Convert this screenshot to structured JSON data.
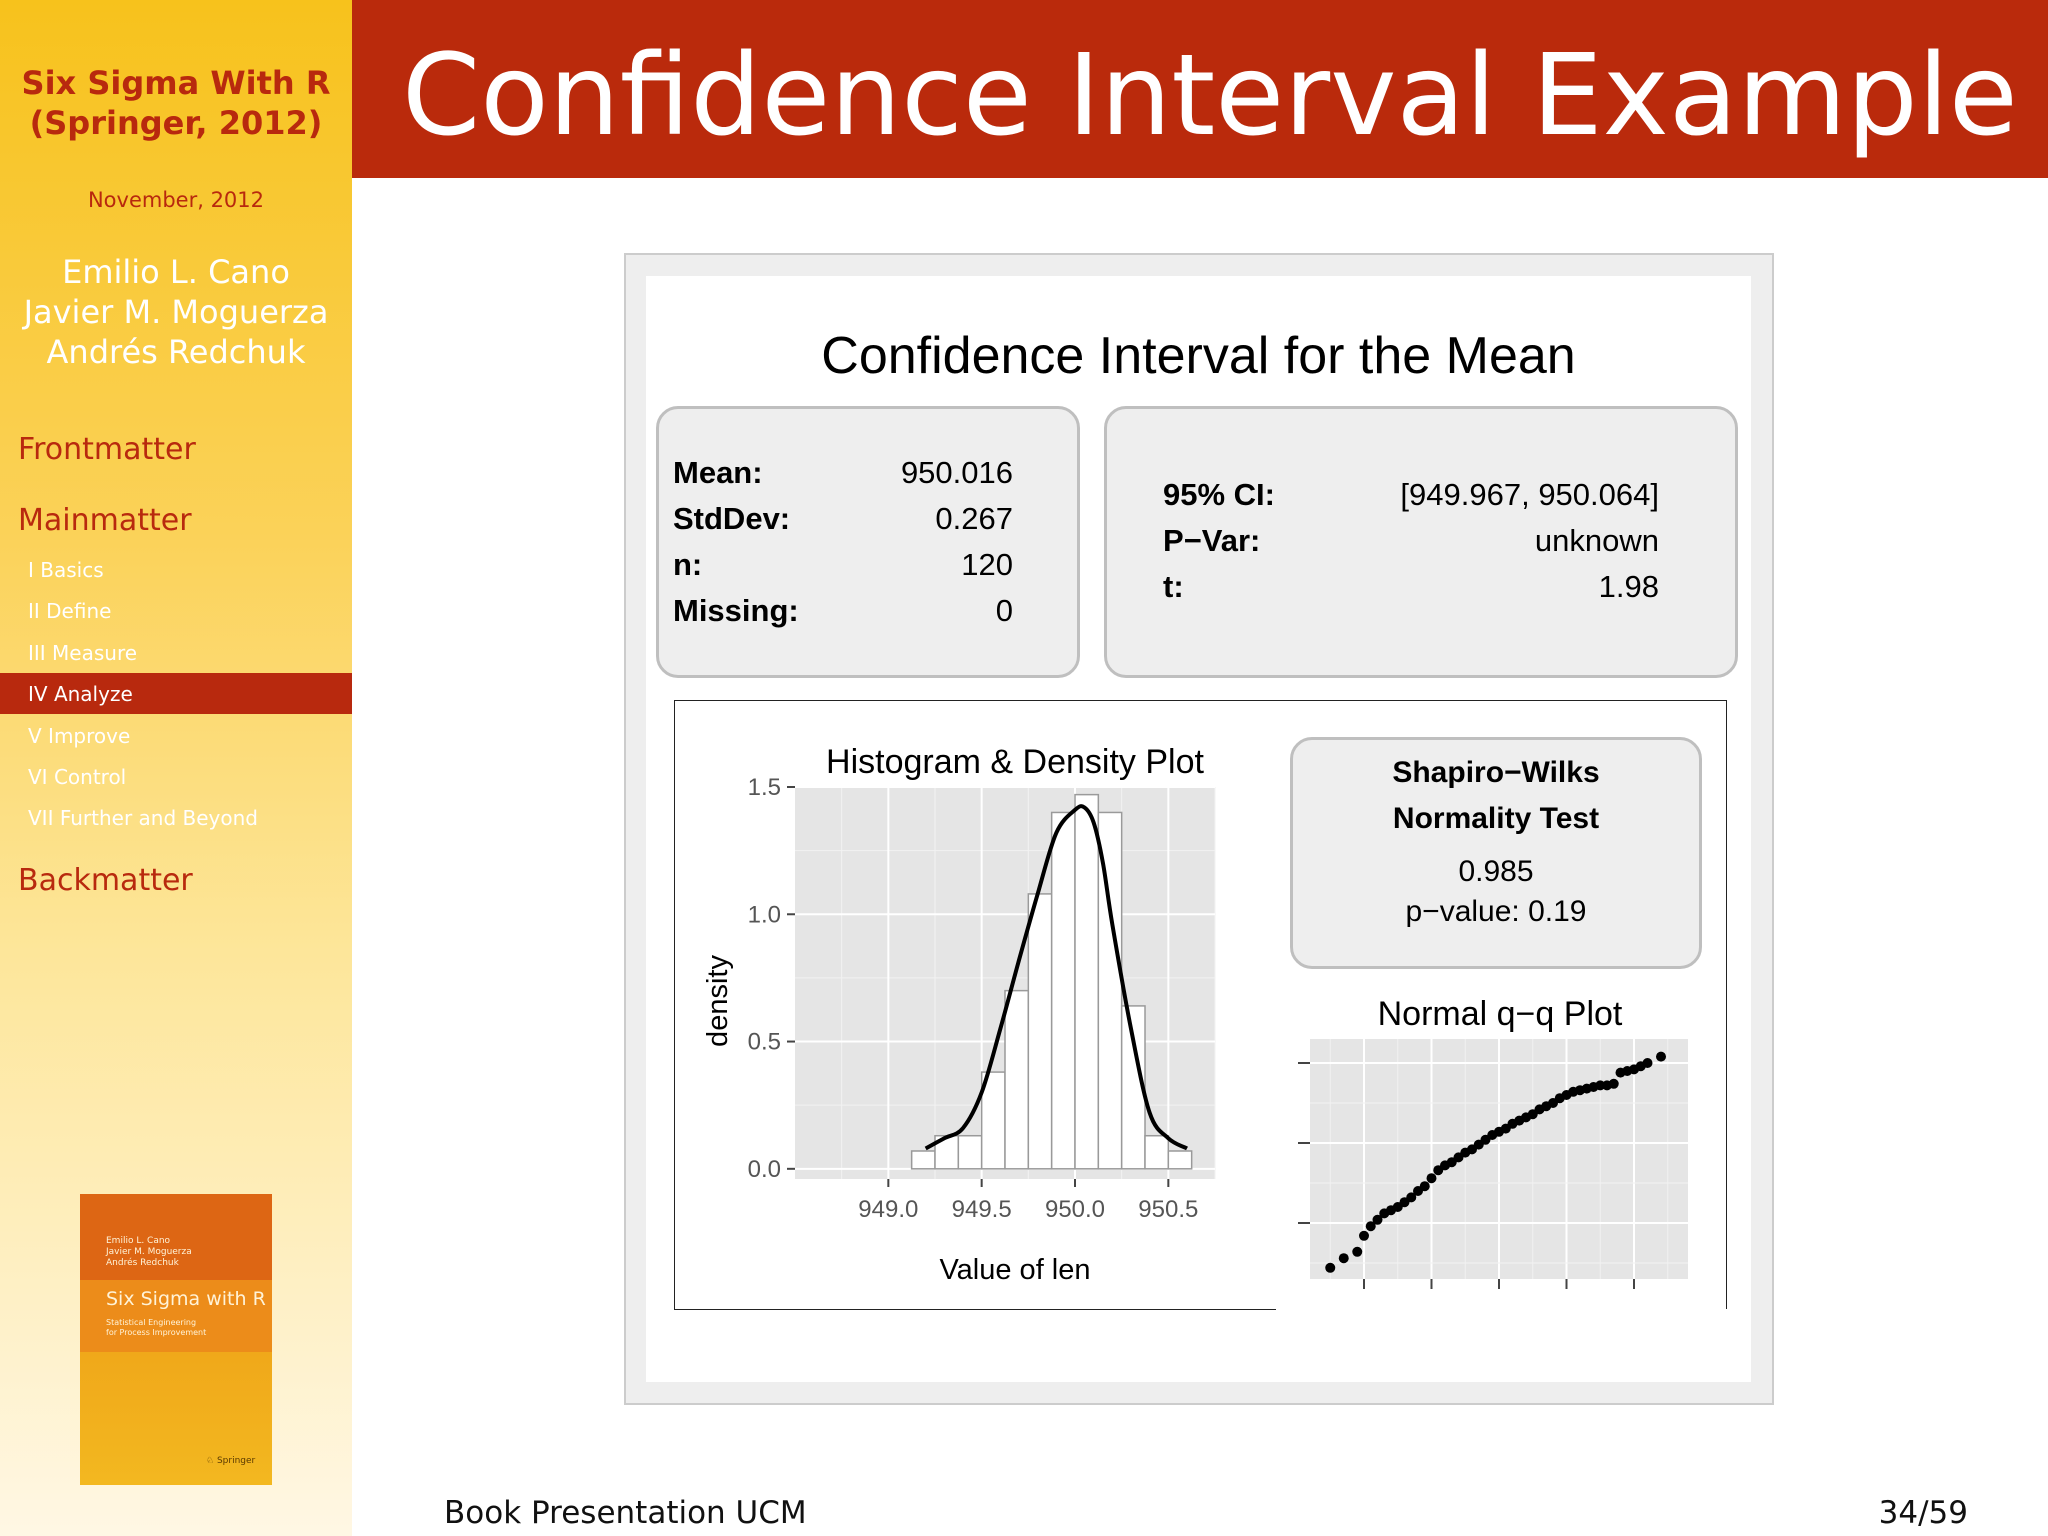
{
  "sidebar": {
    "book_title_line1": "Six Sigma With R",
    "book_title_line2": "(Springer, 2012)",
    "date": "November, 2012",
    "authors": [
      "Emilio L. Cano",
      "Javier M. Moguerza",
      "Andrés Redchuk"
    ],
    "sections": [
      {
        "label": "Frontmatter"
      },
      {
        "label": "Mainmatter"
      },
      {
        "label": "Backmatter"
      }
    ],
    "subsections": [
      {
        "label": "I Basics",
        "active": false
      },
      {
        "label": "II Define",
        "active": false
      },
      {
        "label": "III Measure",
        "active": false
      },
      {
        "label": "IV Analyze",
        "active": true
      },
      {
        "label": "V Improve",
        "active": false
      },
      {
        "label": "VI Control",
        "active": false
      },
      {
        "label": "VII Further and Beyond",
        "active": false
      }
    ],
    "book_cover": {
      "authors": [
        "Emilio L. Cano",
        "Javier M. Moguerza",
        "Andrés Redchuk"
      ],
      "title": "Six Sigma with R",
      "subtitle_line1": "Statistical Engineering",
      "subtitle_line2": "for Process Improvement",
      "publisher": "Springer"
    }
  },
  "header": {
    "title": "Confidence Interval Example"
  },
  "figure": {
    "title": "Confidence Interval for the Mean",
    "stats": [
      {
        "label": "Mean:",
        "value": "950.016"
      },
      {
        "label": "StdDev:",
        "value": "0.267"
      },
      {
        "label": "n:",
        "value": "120"
      },
      {
        "label": "Missing:",
        "value": "0"
      }
    ],
    "ci": [
      {
        "label": "95% CI:",
        "value": "[949.967, 950.064]"
      },
      {
        "label": "P−Var:",
        "value": "unknown"
      },
      {
        "label": "t:",
        "value": "1.98"
      }
    ],
    "shapiro": {
      "title_line1": "Shapiro−Wilks",
      "title_line2": "Normality Test",
      "statistic": "0.985",
      "pvalue": "p−value: 0.19"
    }
  },
  "chart_data": [
    {
      "type": "bar",
      "title": "Histogram & Density Plot",
      "xlabel": "Value of len",
      "ylabel": "density",
      "xlim": [
        948.5,
        950.75
      ],
      "ylim": [
        -0.04,
        1.5
      ],
      "xticks": [
        "949.0",
        "949.5",
        "950.0",
        "950.5"
      ],
      "yticks": [
        "0.0",
        "0.5",
        "1.0",
        "1.5"
      ],
      "grid": true,
      "bins": [
        {
          "x0": 949.125,
          "x1": 949.25,
          "density": 0.07
        },
        {
          "x0": 949.25,
          "x1": 949.375,
          "density": 0.13
        },
        {
          "x0": 949.375,
          "x1": 949.5,
          "density": 0.13
        },
        {
          "x0": 949.5,
          "x1": 949.625,
          "density": 0.38
        },
        {
          "x0": 949.625,
          "x1": 949.75,
          "density": 0.7
        },
        {
          "x0": 949.75,
          "x1": 949.875,
          "density": 1.08
        },
        {
          "x0": 949.875,
          "x1": 950.0,
          "density": 1.4
        },
        {
          "x0": 950.0,
          "x1": 950.125,
          "density": 1.47
        },
        {
          "x0": 950.125,
          "x1": 950.25,
          "density": 1.4
        },
        {
          "x0": 950.25,
          "x1": 950.375,
          "density": 0.64
        },
        {
          "x0": 950.375,
          "x1": 950.5,
          "density": 0.13
        },
        {
          "x0": 950.5,
          "x1": 950.625,
          "density": 0.07
        }
      ],
      "density_curve": {
        "x": [
          949.2,
          949.3,
          949.4,
          949.5,
          949.6,
          949.7,
          949.8,
          949.9,
          950.0,
          950.05,
          950.1,
          950.15,
          950.2,
          950.3,
          950.4,
          950.5,
          950.6
        ],
        "y": [
          0.08,
          0.12,
          0.16,
          0.3,
          0.55,
          0.82,
          1.08,
          1.32,
          1.41,
          1.42,
          1.36,
          1.2,
          0.96,
          0.55,
          0.22,
          0.12,
          0.08
        ]
      }
    },
    {
      "type": "scatter",
      "title": "Normal q−q Plot",
      "xlim": [
        -2.8,
        2.8
      ],
      "ylim": [
        949.15,
        950.65
      ],
      "grid": true,
      "x": [
        -2.5,
        -2.3,
        -2.1,
        -2.0,
        -1.9,
        -1.8,
        -1.7,
        -1.6,
        -1.5,
        -1.4,
        -1.3,
        -1.2,
        -1.1,
        -1.0,
        -0.9,
        -0.8,
        -0.7,
        -0.6,
        -0.5,
        -0.4,
        -0.3,
        -0.2,
        -0.1,
        0.0,
        0.1,
        0.2,
        0.3,
        0.4,
        0.5,
        0.6,
        0.7,
        0.8,
        0.9,
        1.0,
        1.1,
        1.2,
        1.3,
        1.4,
        1.5,
        1.6,
        1.7,
        1.8,
        1.9,
        2.0,
        2.1,
        2.2,
        2.4
      ],
      "y": [
        949.22,
        949.28,
        949.32,
        949.42,
        949.48,
        949.52,
        949.56,
        949.58,
        949.6,
        949.63,
        949.66,
        949.7,
        949.73,
        949.78,
        949.83,
        949.86,
        949.88,
        949.91,
        949.94,
        949.96,
        949.99,
        950.02,
        950.05,
        950.07,
        950.09,
        950.12,
        950.14,
        950.16,
        950.18,
        950.21,
        950.23,
        950.25,
        950.28,
        950.3,
        950.32,
        950.33,
        950.34,
        950.35,
        950.36,
        950.36,
        950.37,
        950.44,
        950.45,
        950.46,
        950.48,
        950.5,
        950.54
      ]
    }
  ],
  "footer": {
    "left": "Book Presentation UCM",
    "page": "34/59"
  }
}
